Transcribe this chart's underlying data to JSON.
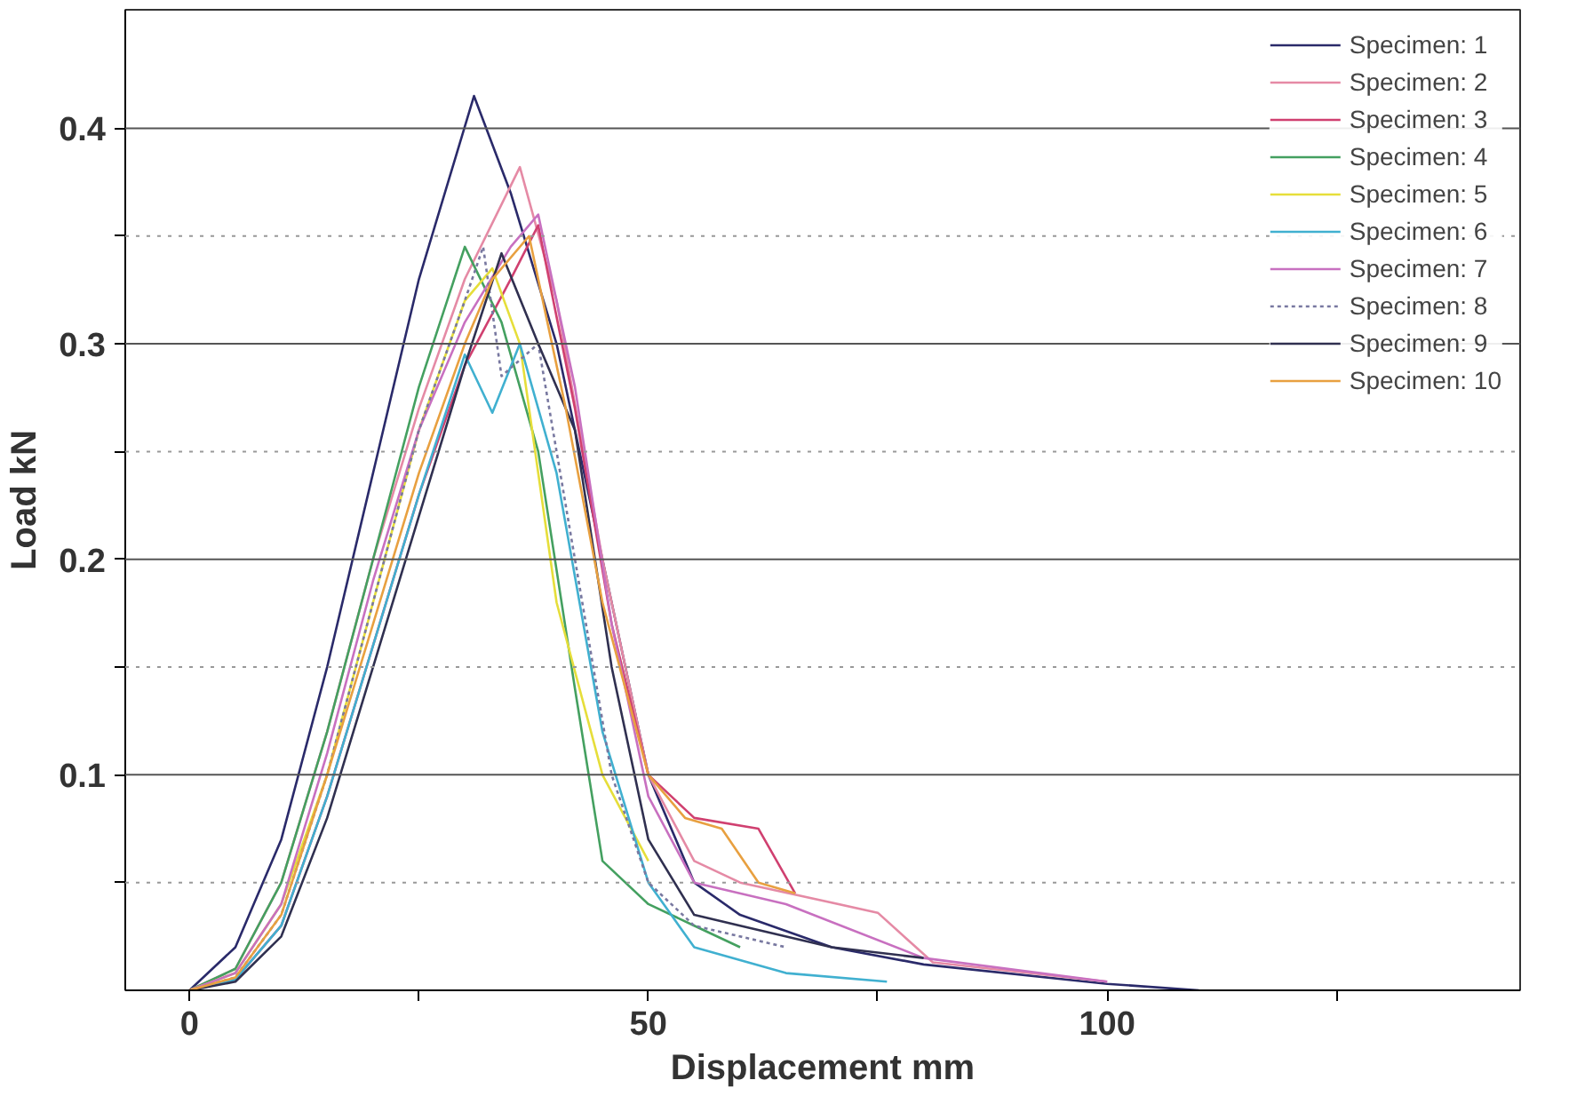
{
  "chart_data": {
    "type": "line",
    "xlabel": "Displacement mm",
    "ylabel": "Load kN",
    "xlim": [
      -7,
      145
    ],
    "ylim": [
      0,
      0.455
    ],
    "xticks": [
      0,
      {
        "value": 25,
        "label": null
      },
      50,
      {
        "value": 75,
        "label": null
      },
      100,
      {
        "value": 125,
        "label": null
      }
    ],
    "yticks": [
      {
        "value": 0.05,
        "label": null
      },
      0.1,
      {
        "value": 0.15,
        "label": null
      },
      0.2,
      {
        "value": 0.25,
        "label": null
      },
      0.3,
      {
        "value": 0.35,
        "label": null
      },
      0.4
    ],
    "grid": "y",
    "legend": "top right",
    "marker": "none",
    "series": [
      {
        "name": "Specimen: 1",
        "color": "#2a2a6a",
        "x": [
          0,
          5,
          10,
          15,
          20,
          25,
          31,
          35,
          40,
          45,
          50,
          55,
          60,
          70,
          80,
          100,
          110
        ],
        "values": [
          0,
          0.02,
          0.07,
          0.15,
          0.24,
          0.33,
          0.415,
          0.37,
          0.3,
          0.2,
          0.1,
          0.05,
          0.035,
          0.02,
          0.012,
          0.003,
          0
        ]
      },
      {
        "name": "Specimen: 2",
        "color": "#e58aa5",
        "x": [
          0,
          5,
          10,
          15,
          20,
          25,
          30,
          36,
          40,
          45,
          50,
          55,
          60,
          75,
          81,
          100
        ],
        "values": [
          0,
          0.01,
          0.05,
          0.12,
          0.2,
          0.27,
          0.33,
          0.382,
          0.32,
          0.2,
          0.1,
          0.06,
          0.05,
          0.036,
          0.013,
          0.004
        ]
      },
      {
        "name": "Specimen: 3",
        "color": "#d04070",
        "x": [
          0,
          5,
          10,
          15,
          20,
          25,
          30,
          35,
          38,
          42,
          46,
          50,
          55,
          62,
          66
        ],
        "values": [
          0,
          0.005,
          0.03,
          0.09,
          0.16,
          0.23,
          0.29,
          0.33,
          0.355,
          0.27,
          0.17,
          0.1,
          0.08,
          0.075,
          0.045
        ]
      },
      {
        "name": "Specimen: 4",
        "color": "#44a060",
        "x": [
          0,
          5,
          10,
          15,
          20,
          25,
          30,
          34,
          38,
          42,
          45,
          50,
          55,
          60
        ],
        "values": [
          0,
          0.01,
          0.05,
          0.12,
          0.2,
          0.28,
          0.345,
          0.31,
          0.25,
          0.14,
          0.06,
          0.04,
          0.03,
          0.02
        ]
      },
      {
        "name": "Specimen: 5",
        "color": "#e6de3a",
        "x": [
          0,
          5,
          10,
          15,
          20,
          25,
          30,
          33,
          36,
          40,
          45,
          50
        ],
        "values": [
          0,
          0.008,
          0.04,
          0.1,
          0.18,
          0.26,
          0.32,
          0.335,
          0.3,
          0.18,
          0.1,
          0.06
        ]
      },
      {
        "name": "Specimen: 6",
        "color": "#40b0d0",
        "x": [
          0,
          5,
          10,
          15,
          20,
          25,
          30,
          33,
          36,
          40,
          45,
          50,
          55,
          65,
          76
        ],
        "values": [
          0,
          0.005,
          0.03,
          0.09,
          0.16,
          0.23,
          0.295,
          0.268,
          0.3,
          0.24,
          0.12,
          0.05,
          0.02,
          0.008,
          0.004
        ]
      },
      {
        "name": "Specimen: 7",
        "color": "#c870c0",
        "x": [
          0,
          5,
          10,
          15,
          20,
          25,
          30,
          35,
          38,
          42,
          46,
          50,
          55,
          65,
          80,
          100
        ],
        "values": [
          0,
          0.008,
          0.04,
          0.11,
          0.19,
          0.26,
          0.31,
          0.345,
          0.36,
          0.28,
          0.17,
          0.09,
          0.05,
          0.04,
          0.015,
          0.004
        ]
      },
      {
        "name": "Specimen: 8",
        "color": "#7878a0",
        "line_style": "dotted",
        "x": [
          0,
          5,
          10,
          15,
          20,
          25,
          30,
          32,
          34,
          38,
          42,
          46,
          50,
          55,
          65
        ],
        "values": [
          0,
          0.006,
          0.035,
          0.1,
          0.18,
          0.26,
          0.32,
          0.345,
          0.285,
          0.3,
          0.2,
          0.1,
          0.05,
          0.03,
          0.02
        ]
      },
      {
        "name": "Specimen: 9",
        "color": "#303050",
        "x": [
          0,
          5,
          10,
          15,
          20,
          25,
          30,
          34,
          38,
          42,
          46,
          50,
          55,
          60,
          70,
          80
        ],
        "values": [
          0,
          0.004,
          0.025,
          0.08,
          0.15,
          0.22,
          0.29,
          0.342,
          0.3,
          0.26,
          0.15,
          0.07,
          0.035,
          0.03,
          0.02,
          0.015
        ]
      },
      {
        "name": "Specimen: 10",
        "color": "#e8a040",
        "x": [
          0,
          5,
          10,
          15,
          20,
          25,
          30,
          33,
          37,
          41,
          45,
          50,
          54,
          58,
          62,
          66
        ],
        "values": [
          0,
          0.006,
          0.035,
          0.1,
          0.17,
          0.24,
          0.3,
          0.33,
          0.35,
          0.27,
          0.18,
          0.1,
          0.08,
          0.075,
          0.05,
          0.045
        ]
      }
    ]
  }
}
